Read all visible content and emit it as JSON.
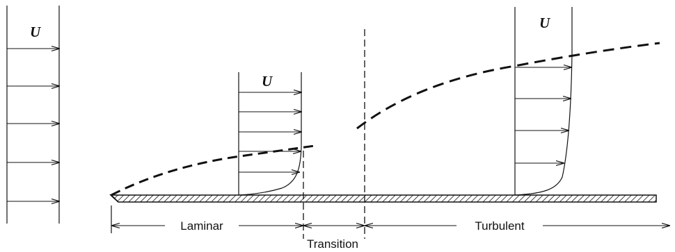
{
  "diagram": {
    "free_stream_label": "U",
    "laminar_velocity_label": "U",
    "turbulent_velocity_label": "U",
    "regions": {
      "laminar": "Laminar",
      "transition": "Transition",
      "turbulent": "Turbulent"
    }
  },
  "colors": {
    "ink": "#111111",
    "background": "#ffffff"
  }
}
